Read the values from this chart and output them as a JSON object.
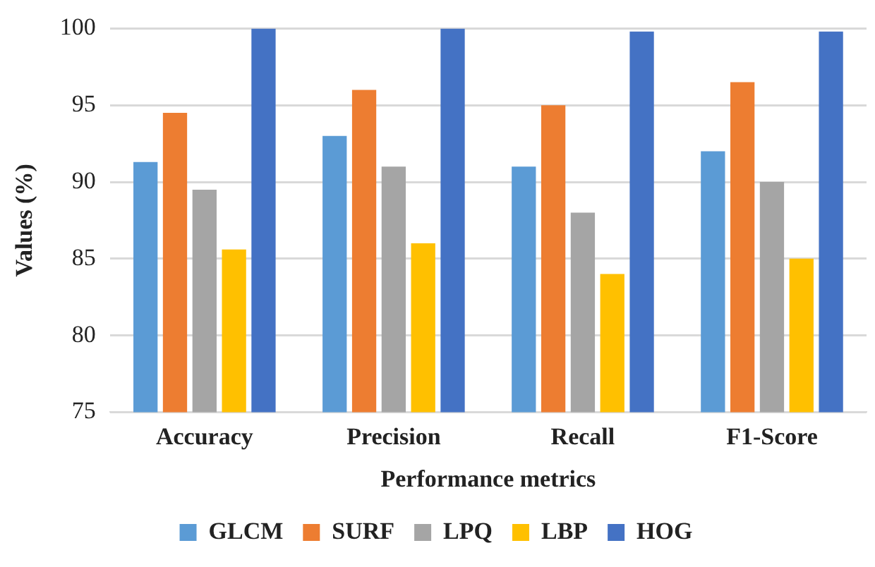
{
  "chart_data": {
    "type": "bar",
    "xlabel": "Performance metrics",
    "ylabel": "Values (%)",
    "categories": [
      "Accuracy",
      "Precision",
      "Recall",
      "F1-Score"
    ],
    "series": [
      {
        "name": "GLCM",
        "color": "#5b9bd5",
        "values": [
          91.3,
          93,
          91,
          92
        ]
      },
      {
        "name": "SURF",
        "color": "#ed7d31",
        "values": [
          94.5,
          96,
          95,
          96.5
        ]
      },
      {
        "name": "LPQ",
        "color": "#a5a5a5",
        "values": [
          89.5,
          91,
          88,
          90
        ]
      },
      {
        "name": "LBP",
        "color": "#ffc000",
        "values": [
          85.6,
          86,
          84,
          85
        ]
      },
      {
        "name": "HOG",
        "color": "#4472c4",
        "values": [
          100,
          100,
          99.8,
          99.8
        ]
      }
    ],
    "ylim": [
      75,
      100
    ],
    "yticks": [
      75,
      80,
      85,
      90,
      95,
      100
    ],
    "grid": "y",
    "legend": "bottom"
  }
}
